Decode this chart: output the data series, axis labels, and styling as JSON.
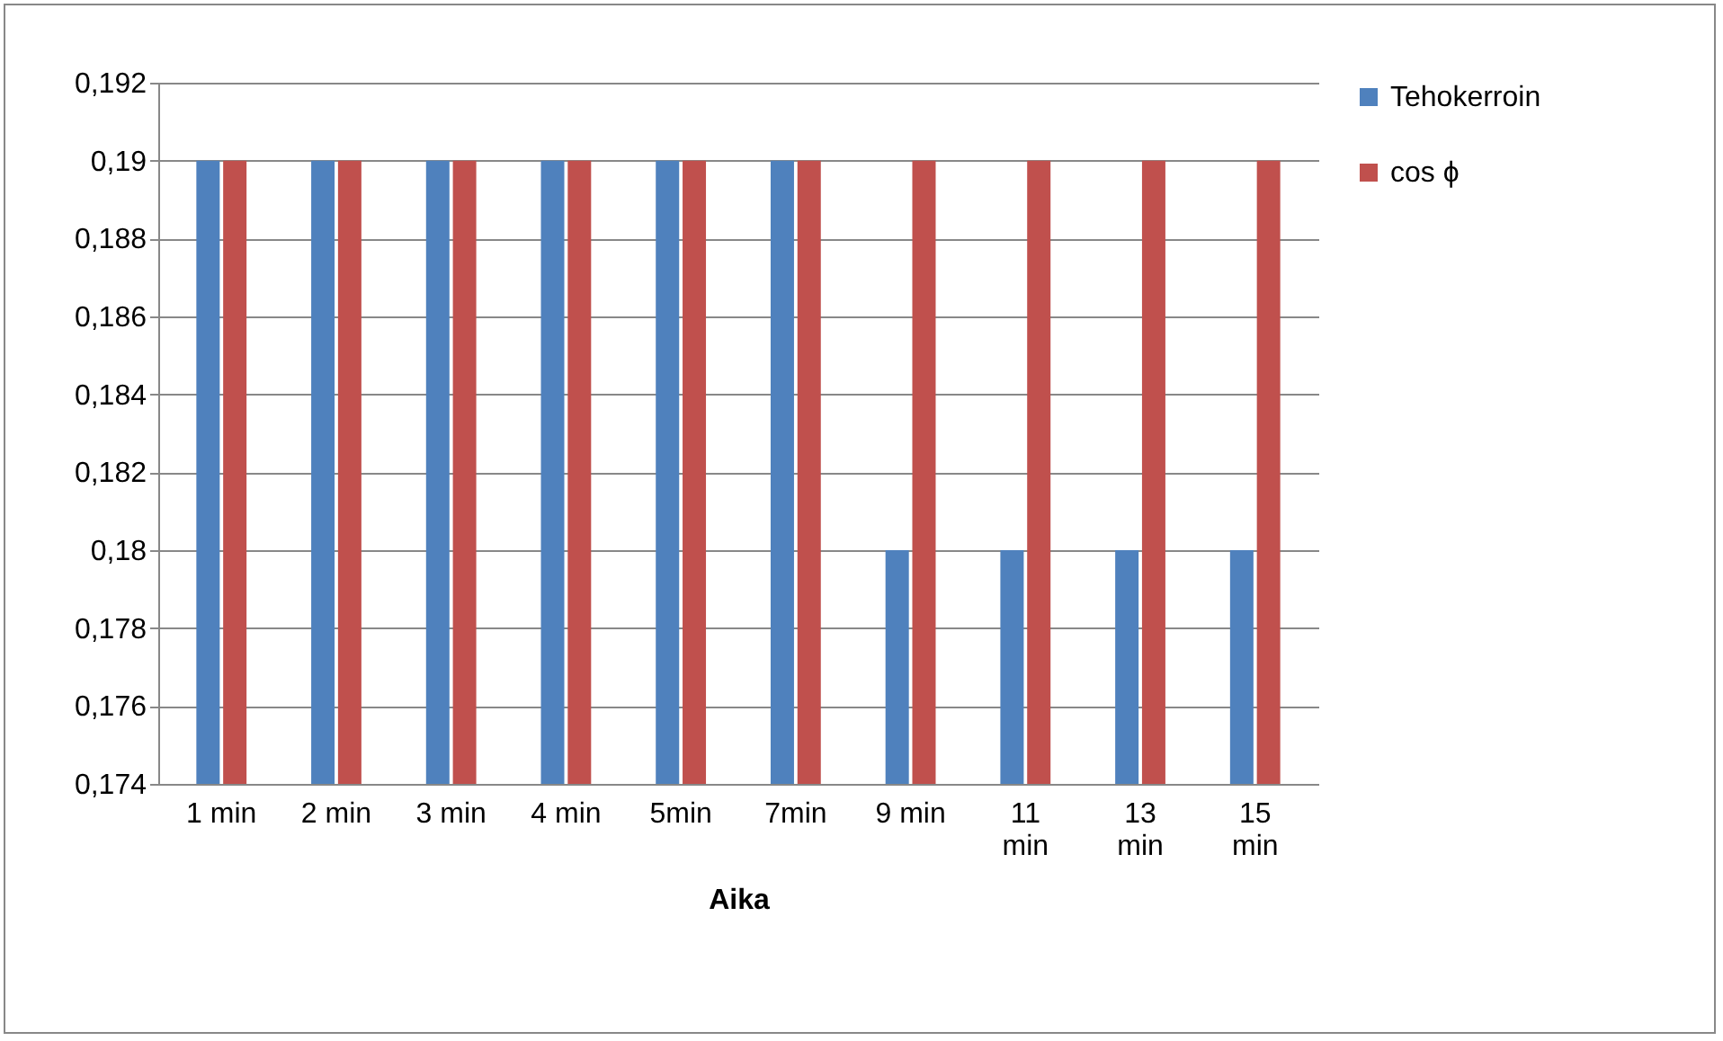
{
  "chart_data": {
    "type": "bar",
    "xlabel": "Aika",
    "categories": [
      "1 min",
      "2 min",
      "3 min",
      "4 min",
      "5min",
      "7min",
      "9 min",
      "11 min",
      "13 min",
      "15 min"
    ],
    "series": [
      {
        "name": "Tehokerroin",
        "color": "#4f81bd",
        "values": [
          0.19,
          0.19,
          0.19,
          0.19,
          0.19,
          0.19,
          0.18,
          0.18,
          0.18,
          0.18
        ]
      },
      {
        "name": "cos ϕ",
        "color": "#c0504d",
        "values": [
          0.19,
          0.19,
          0.19,
          0.19,
          0.19,
          0.19,
          0.19,
          0.19,
          0.19,
          0.19
        ]
      }
    ],
    "ylim": [
      0.174,
      0.192
    ],
    "yticks": [
      {
        "value": 0.174,
        "label": "0,174"
      },
      {
        "value": 0.176,
        "label": "0,176"
      },
      {
        "value": 0.178,
        "label": "0,178"
      },
      {
        "value": 0.18,
        "label": "0,18"
      },
      {
        "value": 0.182,
        "label": "0,182"
      },
      {
        "value": 0.184,
        "label": "0,184"
      },
      {
        "value": 0.186,
        "label": "0,186"
      },
      {
        "value": 0.188,
        "label": "0,188"
      },
      {
        "value": 0.19,
        "label": "0,19"
      },
      {
        "value": 0.192,
        "label": "0,192"
      }
    ],
    "grid": "y",
    "legend": "right"
  }
}
